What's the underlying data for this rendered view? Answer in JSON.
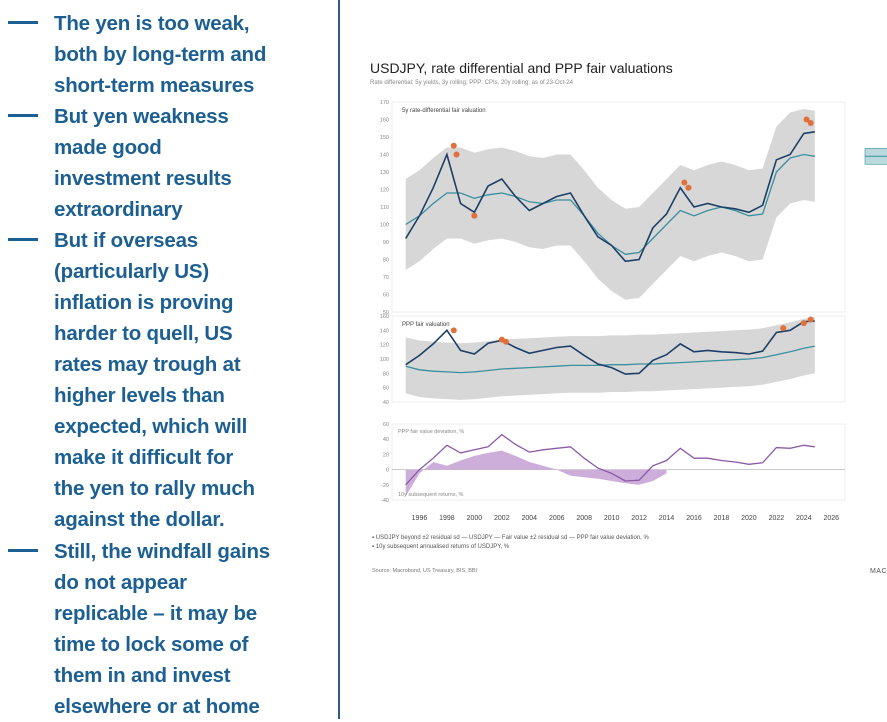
{
  "bullets": [
    {
      "lines": [
        "The yen is too weak,",
        "both by long-term and",
        "short-term measures"
      ]
    },
    {
      "lines": [
        "But yen weakness",
        "made good",
        "investment results",
        "extraordinary"
      ]
    },
    {
      "lines": [
        "But if overseas",
        "(particularly US)",
        "inflation is proving",
        "harder to quell, US",
        "rates may trough at",
        "higher levels than",
        "expected, which will",
        "make it difficult for",
        "the yen to rally much",
        "against the dollar."
      ]
    },
    {
      "lines": [
        "Still, the windfall gains",
        "do not appear",
        "replicable – it may be",
        "time to lock some of",
        "them in and invest",
        "elsewhere or at home"
      ]
    }
  ],
  "chart": {
    "title": "USDJPY, rate differential and PPP fair valuations",
    "subtitle": "Rate differential: 5y yields, 3y rolling; PPP: CPIs, 20y rolling; as of 23-Oct-24",
    "legend_line1": "▪ USDJPY beyond ±2 residual sd   — USDJPY   — Fair value ±2 residual sd   — PPP fair value deviation, %",
    "legend_line2": "▪ 10y subsequent annualised returns of USDJPY, %",
    "source": "Source: Macrobond, US Treasury, BIS, BBI",
    "logo": "MAC",
    "colors": {
      "usdjpy": "#1d3f66",
      "fair": "#3b8fa0",
      "band": "#c9c9c9",
      "beyond": "#e0703a",
      "ppp_dev": "#8a5aa6",
      "returns": "#cdaedb"
    }
  },
  "chart_data": [
    {
      "type": "line",
      "panel_label": "5y rate-differential fair valuation",
      "ylim": [
        50,
        170
      ],
      "yticks": [
        50,
        60,
        70,
        80,
        90,
        100,
        110,
        120,
        130,
        140,
        150,
        160,
        170
      ],
      "xlim": [
        1994,
        2027
      ],
      "xticks": [
        1996,
        1998,
        2000,
        2002,
        2004,
        2006,
        2008,
        2010,
        2012,
        2014,
        2016,
        2018,
        2020,
        2022,
        2024,
        2026
      ],
      "x": [
        1995,
        1996,
        1997,
        1998,
        1999,
        2000,
        2001,
        2002,
        2003,
        2004,
        2005,
        2006,
        2007,
        2008,
        2009,
        2010,
        2011,
        2012,
        2013,
        2014,
        2015,
        2016,
        2017,
        2018,
        2019,
        2020,
        2021,
        2022,
        2023,
        2024,
        2024.8
      ],
      "series": [
        {
          "name": "USDJPY",
          "values": [
            92,
            105,
            121,
            140,
            112,
            107,
            122,
            126,
            116,
            108,
            112,
            116,
            118,
            105,
            93,
            88,
            79,
            80,
            98,
            106,
            121,
            110,
            112,
            110,
            109,
            107,
            111,
            137,
            140,
            152,
            153
          ]
        },
        {
          "name": "Fair value",
          "values": [
            100,
            105,
            112,
            118,
            118,
            115,
            117,
            118,
            116,
            113,
            112,
            114,
            114,
            105,
            95,
            88,
            83,
            84,
            92,
            100,
            108,
            105,
            108,
            110,
            108,
            105,
            106,
            130,
            138,
            140,
            139
          ]
        },
        {
          "name": "Fair value +2 residual sd",
          "values": [
            126,
            131,
            138,
            144,
            144,
            141,
            143,
            144,
            142,
            139,
            138,
            140,
            140,
            131,
            121,
            114,
            109,
            110,
            118,
            126,
            134,
            131,
            134,
            136,
            134,
            131,
            132,
            156,
            164,
            166,
            165
          ]
        },
        {
          "name": "Fair value -2 residual sd",
          "values": [
            74,
            79,
            86,
            92,
            92,
            89,
            91,
            92,
            90,
            87,
            86,
            88,
            88,
            79,
            69,
            62,
            57,
            58,
            66,
            74,
            82,
            79,
            82,
            84,
            82,
            79,
            80,
            104,
            112,
            114,
            113
          ]
        }
      ],
      "beyond_points": [
        {
          "x": 1998.5,
          "y": 145
        },
        {
          "x": 1998.7,
          "y": 140
        },
        {
          "x": 2000,
          "y": 105
        },
        {
          "x": 2015.3,
          "y": 124
        },
        {
          "x": 2015.6,
          "y": 121
        },
        {
          "x": 2024.2,
          "y": 160
        },
        {
          "x": 2024.5,
          "y": 158
        }
      ]
    },
    {
      "type": "line",
      "panel_label": "PPP fair valuation",
      "ylim": [
        40,
        160
      ],
      "yticks": [
        40,
        60,
        80,
        100,
        120,
        140,
        160
      ],
      "xlim": [
        1994,
        2027
      ],
      "x": [
        1995,
        1996,
        1997,
        1998,
        1999,
        2000,
        2001,
        2002,
        2003,
        2004,
        2005,
        2006,
        2007,
        2008,
        2009,
        2010,
        2011,
        2012,
        2013,
        2014,
        2015,
        2016,
        2017,
        2018,
        2019,
        2020,
        2021,
        2022,
        2023,
        2024,
        2024.8
      ],
      "series": [
        {
          "name": "USDJPY",
          "values": [
            92,
            105,
            121,
            140,
            112,
            107,
            122,
            126,
            116,
            108,
            112,
            116,
            118,
            105,
            93,
            88,
            79,
            80,
            98,
            106,
            121,
            110,
            112,
            110,
            109,
            107,
            111,
            137,
            140,
            152,
            153
          ]
        },
        {
          "name": "Fair value",
          "values": [
            90,
            85,
            83,
            82,
            81,
            82,
            84,
            86,
            87,
            88,
            89,
            90,
            91,
            91,
            91,
            92,
            92,
            93,
            93,
            94,
            95,
            96,
            97,
            98,
            99,
            100,
            102,
            106,
            110,
            115,
            118
          ]
        },
        {
          "name": "Fair value +2 residual sd",
          "values": [
            130,
            126,
            124,
            123,
            122,
            123,
            125,
            127,
            128,
            129,
            130,
            131,
            132,
            132,
            132,
            133,
            133,
            134,
            134,
            135,
            136,
            137,
            138,
            139,
            140,
            141,
            143,
            147,
            151,
            156,
            159
          ]
        },
        {
          "name": "Fair value -2 residual sd",
          "values": [
            52,
            47,
            45,
            44,
            43,
            44,
            46,
            48,
            49,
            50,
            51,
            52,
            53,
            53,
            53,
            54,
            54,
            55,
            55,
            56,
            57,
            58,
            59,
            60,
            61,
            62,
            64,
            68,
            72,
            77,
            80
          ]
        }
      ],
      "beyond_points": [
        {
          "x": 1998.5,
          "y": 140
        },
        {
          "x": 2002,
          "y": 127
        },
        {
          "x": 2002.3,
          "y": 124
        },
        {
          "x": 2022.5,
          "y": 143
        },
        {
          "x": 2024,
          "y": 150
        },
        {
          "x": 2024.5,
          "y": 155
        }
      ]
    },
    {
      "type": "area",
      "ylim": [
        -40,
        60
      ],
      "yticks": [
        -40,
        -20,
        0,
        20,
        40,
        60
      ],
      "xlim": [
        1994,
        2027
      ],
      "annotation_upper": "PPP fair value deviation, %",
      "annotation_lower": "10y subsequent returns, %",
      "series": [
        {
          "name": "PPP fair value deviation, %",
          "x": [
            1995,
            1996,
            1997,
            1998,
            1999,
            2000,
            2001,
            2002,
            2003,
            2004,
            2005,
            2006,
            2007,
            2008,
            2009,
            2010,
            2011,
            2012,
            2013,
            2014,
            2015,
            2016,
            2017,
            2018,
            2019,
            2020,
            2021,
            2022,
            2023,
            2024,
            2024.8
          ],
          "values": [
            -20,
            0,
            15,
            32,
            22,
            26,
            30,
            46,
            33,
            23,
            26,
            28,
            30,
            15,
            2,
            -5,
            -15,
            -14,
            5,
            12,
            28,
            15,
            15,
            12,
            10,
            7,
            9,
            29,
            28,
            32,
            30
          ]
        },
        {
          "name": "10y subsequent annualised returns of USDJPY, %",
          "x": [
            1995,
            1996,
            1997,
            1998,
            1999,
            2000,
            2001,
            2002,
            2003,
            2004,
            2005,
            2006,
            2007,
            2008,
            2009,
            2010,
            2011,
            2012,
            2013,
            2014
          ],
          "values": [
            -35,
            -5,
            10,
            5,
            12,
            18,
            22,
            25,
            18,
            10,
            5,
            0,
            -8,
            -10,
            -12,
            -15,
            -18,
            -20,
            -15,
            -5
          ]
        }
      ]
    }
  ]
}
